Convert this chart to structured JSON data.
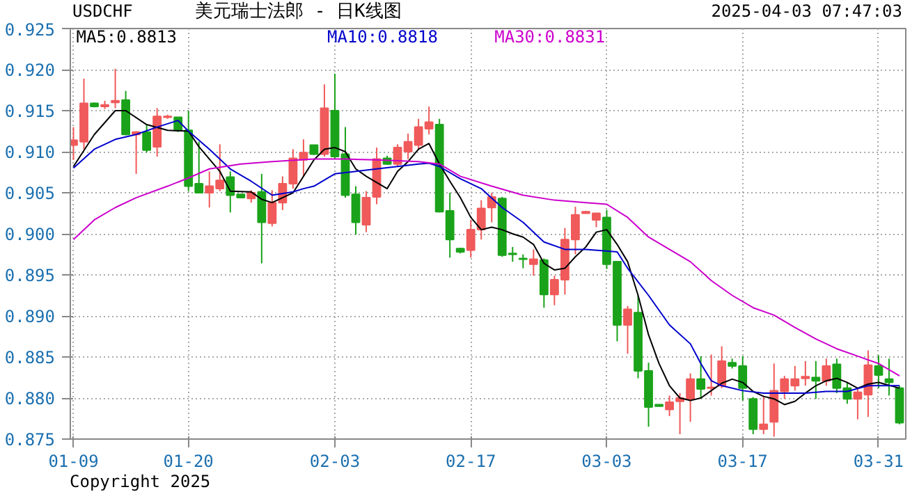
{
  "chart_data": {
    "type": "candlestick",
    "title": "美元瑞士法郎 - 日K线图",
    "annotations": [
      "USDCHF",
      "2025-04-03 07:47:03",
      "Copyright 2025"
    ],
    "categories": [
      "01-09",
      null,
      null,
      null,
      null,
      null,
      null,
      null,
      null,
      null,
      null,
      "01-20",
      null,
      null,
      null,
      null,
      null,
      null,
      null,
      null,
      null,
      null,
      null,
      null,
      null,
      "02-03",
      null,
      null,
      null,
      null,
      null,
      null,
      null,
      null,
      null,
      null,
      null,
      null,
      "02-17",
      null,
      null,
      null,
      null,
      null,
      null,
      null,
      null,
      null,
      null,
      null,
      null,
      "03-03",
      null,
      null,
      null,
      null,
      null,
      null,
      null,
      null,
      null,
      null,
      null,
      null,
      "03-17",
      null,
      null,
      null,
      null,
      null,
      null,
      null,
      null,
      null,
      null,
      null,
      null,
      "03-31",
      null,
      null
    ],
    "ohlc": [
      [
        0.9108,
        0.913,
        0.909,
        0.9114
      ],
      [
        0.9112,
        0.9189,
        0.9103,
        0.9159
      ],
      [
        0.9159,
        0.916,
        0.9154,
        0.9155
      ],
      [
        0.9155,
        0.9162,
        0.9152,
        0.9157
      ],
      [
        0.916,
        0.9201,
        0.9153,
        0.9162
      ],
      [
        0.9163,
        0.9174,
        0.912,
        0.9121
      ],
      [
        0.9121,
        0.9125,
        0.9073,
        0.9124
      ],
      [
        0.9124,
        0.9133,
        0.9099,
        0.9102
      ],
      [
        0.9106,
        0.9153,
        0.9094,
        0.9143
      ],
      [
        0.9142,
        0.9145,
        0.914,
        0.9143
      ],
      [
        0.9142,
        0.9142,
        0.9124,
        0.9126
      ],
      [
        0.9126,
        0.915,
        0.9052,
        0.9058
      ],
      [
        0.9061,
        0.9112,
        0.905,
        0.905
      ],
      [
        0.905,
        0.9076,
        0.9032,
        0.9058
      ],
      [
        0.9055,
        0.9109,
        0.9052,
        0.9065
      ],
      [
        0.9069,
        0.9076,
        0.9026,
        0.9047
      ],
      [
        0.9048,
        0.9048,
        0.9044,
        0.9044
      ],
      [
        0.9043,
        0.9053,
        0.9038,
        0.905
      ],
      [
        0.9051,
        0.9073,
        0.8964,
        0.9014
      ],
      [
        0.9013,
        0.9053,
        0.9009,
        0.9038
      ],
      [
        0.9038,
        0.907,
        0.9029,
        0.9061
      ],
      [
        0.9061,
        0.9103,
        0.9055,
        0.9092
      ],
      [
        0.909,
        0.9115,
        0.907,
        0.9099
      ],
      [
        0.9108,
        0.9108,
        0.9096,
        0.9097
      ],
      [
        0.9097,
        0.9182,
        0.9094,
        0.9153
      ],
      [
        0.915,
        0.9195,
        0.9091,
        0.9094
      ],
      [
        0.9097,
        0.913,
        0.9044,
        0.9047
      ],
      [
        0.9048,
        0.9058,
        0.8999,
        0.9014
      ],
      [
        0.9011,
        0.9052,
        0.9002,
        0.9044
      ],
      [
        0.9045,
        0.9105,
        0.9036,
        0.9091
      ],
      [
        0.9092,
        0.9095,
        0.9084,
        0.9085
      ],
      [
        0.9085,
        0.9109,
        0.9082,
        0.9105
      ],
      [
        0.91,
        0.9122,
        0.9091,
        0.9112
      ],
      [
        0.9108,
        0.914,
        0.9103,
        0.913
      ],
      [
        0.9128,
        0.9155,
        0.9121,
        0.9136
      ],
      [
        0.9133,
        0.914,
        0.9026,
        0.9027
      ],
      [
        0.9028,
        0.905,
        0.8971,
        0.8993
      ],
      [
        0.8982,
        0.8983,
        0.8976,
        0.8978
      ],
      [
        0.898,
        0.9017,
        0.8971,
        0.9005
      ],
      [
        0.9005,
        0.9041,
        0.8993,
        0.9031
      ],
      [
        0.9032,
        0.905,
        0.9014,
        0.9045
      ],
      [
        0.9043,
        0.9045,
        0.8972,
        0.8974
      ],
      [
        0.8976,
        0.8984,
        0.8966,
        0.8975
      ],
      [
        0.897,
        0.8975,
        0.8958,
        0.8969
      ],
      [
        0.8963,
        0.8981,
        0.8949,
        0.8969
      ],
      [
        0.8968,
        0.897,
        0.891,
        0.8926
      ],
      [
        0.8926,
        0.8949,
        0.8913,
        0.8944
      ],
      [
        0.8944,
        0.9007,
        0.8926,
        0.8993
      ],
      [
        0.8993,
        0.9033,
        0.8975,
        0.9023
      ],
      [
        0.9025,
        0.9028,
        0.9025,
        0.9027
      ],
      [
        0.9017,
        0.9025,
        0.9008,
        0.9025
      ],
      [
        0.902,
        0.9029,
        0.8957,
        0.8963
      ],
      [
        0.8966,
        0.8966,
        0.8869,
        0.8889
      ],
      [
        0.8889,
        0.8912,
        0.8854,
        0.8908
      ],
      [
        0.8904,
        0.8925,
        0.8824,
        0.8833
      ],
      [
        0.8833,
        0.8843,
        0.8765,
        0.8789
      ],
      [
        0.8792,
        0.8792,
        0.879,
        0.879
      ],
      [
        0.8786,
        0.8803,
        0.8778,
        0.8795
      ],
      [
        0.8796,
        0.8806,
        0.8756,
        0.88
      ],
      [
        0.8799,
        0.883,
        0.8771,
        0.8823
      ],
      [
        0.8823,
        0.8851,
        0.8799,
        0.8811
      ],
      [
        0.8812,
        0.8853,
        0.8803,
        0.8813
      ],
      [
        0.8815,
        0.8863,
        0.8812,
        0.8845
      ],
      [
        0.8843,
        0.8848,
        0.8836,
        0.8839
      ],
      [
        0.8839,
        0.8851,
        0.8797,
        0.8812
      ],
      [
        0.8799,
        0.8801,
        0.8756,
        0.8762
      ],
      [
        0.8762,
        0.8802,
        0.8756,
        0.8768
      ],
      [
        0.8771,
        0.8842,
        0.8753,
        0.8809
      ],
      [
        0.8808,
        0.8827,
        0.8799,
        0.8823
      ],
      [
        0.8815,
        0.8839,
        0.8809,
        0.8823
      ],
      [
        0.8824,
        0.8845,
        0.8815,
        0.8826
      ],
      [
        0.8825,
        0.8845,
        0.8799,
        0.8821
      ],
      [
        0.8821,
        0.8848,
        0.8815,
        0.8839
      ],
      [
        0.8841,
        0.8848,
        0.8806,
        0.8812
      ],
      [
        0.8812,
        0.8819,
        0.8793,
        0.8799
      ],
      [
        0.8799,
        0.8812,
        0.8774,
        0.8807
      ],
      [
        0.8804,
        0.8858,
        0.8777,
        0.884
      ],
      [
        0.8839,
        0.8852,
        0.8812,
        0.8828
      ],
      [
        0.8823,
        0.8848,
        0.8803,
        0.8819
      ],
      [
        0.8812,
        0.8815,
        0.8768,
        0.877
      ]
    ],
    "colors": [
      "#f05a5a",
      "#f05a5a",
      "#1aa31a",
      "#f05a5a",
      "#f05a5a",
      "#1aa31a",
      "#f05a5a",
      "#1aa31a",
      "#f05a5a",
      "#f05a5a",
      "#1aa31a",
      "#1aa31a",
      "#1aa31a",
      "#f05a5a",
      "#f05a5a",
      "#1aa31a",
      "#1aa31a",
      "#f05a5a",
      "#1aa31a",
      "#f05a5a",
      "#f05a5a",
      "#f05a5a",
      "#f05a5a",
      "#1aa31a",
      "#f05a5a",
      "#1aa31a",
      "#1aa31a",
      "#1aa31a",
      "#f05a5a",
      "#f05a5a",
      "#1aa31a",
      "#f05a5a",
      "#f05a5a",
      "#f05a5a",
      "#f05a5a",
      "#1aa31a",
      "#1aa31a",
      "#1aa31a",
      "#f05a5a",
      "#f05a5a",
      "#f05a5a",
      "#1aa31a",
      "#1aa31a",
      "#1aa31a",
      "#f05a5a",
      "#1aa31a",
      "#f05a5a",
      "#f05a5a",
      "#f05a5a",
      "#f05a5a",
      "#f05a5a",
      "#1aa31a",
      "#1aa31a",
      "#f05a5a",
      "#1aa31a",
      "#1aa31a",
      "#1aa31a",
      "#f05a5a",
      "#f05a5a",
      "#f05a5a",
      "#1aa31a",
      "#f05a5a",
      "#f05a5a",
      "#1aa31a",
      "#1aa31a",
      "#1aa31a",
      "#f05a5a",
      "#f05a5a",
      "#f05a5a",
      "#f05a5a",
      "#f05a5a",
      "#1aa31a",
      "#f05a5a",
      "#1aa31a",
      "#1aa31a",
      "#f05a5a",
      "#f05a5a",
      "#1aa31a",
      "#1aa31a",
      "#1aa31a"
    ],
    "series": [
      {
        "type": "line",
        "name": "MA5:0.8813",
        "color": "#000000",
        "values": [
          0.9082,
          null,
          0.9121,
          null,
          0.915,
          0.915,
          null,
          0.9133,
          null,
          0.9126,
          null,
          0.9125,
          0.9106,
          null,
          0.9076,
          0.9052,
          null,
          0.9051,
          0.9042,
          0.9038,
          null,
          0.905,
          null,
          0.909,
          0.9103,
          0.9105,
          0.91,
          0.9079,
          0.907,
          null,
          0.9055,
          0.9076,
          0.9088,
          0.9103,
          0.911,
          0.9085,
          0.9064,
          0.9044,
          0.902,
          0.9005,
          0.9008,
          0.9005,
          0.9,
          0.8996,
          0.8987,
          0.8964,
          0.8956,
          0.8958,
          0.8972,
          0.8984,
          0.9002,
          0.9005,
          0.8987,
          0.8966,
          0.8925,
          0.8877,
          0.8842,
          0.8815,
          0.88,
          0.8797,
          0.88,
          0.8809,
          0.8818,
          0.8823,
          0.8819,
          0.8808,
          0.8802,
          0.8799,
          0.8792,
          0.8796,
          0.8806,
          0.8815,
          0.8821,
          0.8824,
          0.8819,
          0.8812,
          0.8817,
          0.8819,
          null,
          0.8812
        ]
      },
      {
        "type": "line",
        "name": "MA10:0.8818",
        "color": "#0000cc",
        "values": [
          0.908,
          null,
          0.9103,
          null,
          0.9115,
          null,
          0.9121,
          null,
          0.913,
          null,
          0.9138,
          0.9125,
          null,
          0.9103,
          null,
          0.9079,
          null,
          0.9064,
          null,
          0.9047,
          null,
          0.9051,
          0.9055,
          0.9058,
          null,
          0.9073,
          null,
          0.9076,
          null,
          0.9079,
          null,
          0.9082,
          null,
          0.9085,
          0.9086,
          0.9082,
          null,
          0.9067,
          null,
          0.9055,
          null,
          0.9032,
          null,
          0.9014,
          null,
          0.899,
          null,
          0.8981,
          null,
          0.8981,
          null,
          0.8979,
          0.8978,
          0.8958,
          null,
          0.8925,
          null,
          0.8889,
          null,
          0.8866,
          0.8842,
          0.8821,
          0.8815,
          null,
          0.8809,
          null,
          0.8806,
          null,
          0.8806,
          null,
          0.8806,
          null,
          0.8808,
          null,
          0.8808,
          null,
          0.8815,
          null,
          null,
          0.8815
        ]
      },
      {
        "type": "line",
        "name": "MA30:0.8831",
        "color": "#cc00cc",
        "values": [
          0.8993,
          null,
          0.9017,
          null,
          0.9032,
          null,
          0.9044,
          null,
          null,
          0.9058,
          null,
          0.9068,
          null,
          0.9079,
          null,
          null,
          0.9085,
          null,
          null,
          0.9088,
          null,
          null,
          null,
          0.9091,
          null,
          null,
          0.9091,
          null,
          null,
          0.909,
          null,
          null,
          null,
          0.9088,
          null,
          0.9085,
          null,
          0.907,
          null,
          null,
          0.9058,
          null,
          null,
          0.9047,
          null,
          null,
          0.9041,
          null,
          null,
          0.9038,
          null,
          0.9036,
          null,
          0.902,
          null,
          0.8996,
          null,
          0.8981,
          null,
          0.8966,
          null,
          0.8943,
          null,
          0.8925,
          null,
          0.891,
          null,
          0.8901,
          null,
          0.8886,
          null,
          0.8872,
          null,
          0.886,
          null,
          0.8851,
          null,
          0.8842,
          null,
          0.8827
        ]
      }
    ],
    "ylim": [
      0.875,
      0.925
    ],
    "yticks": [
      {
        "value": 0.875,
        "label": "0.875"
      },
      {
        "value": 0.88,
        "label": "0.880"
      },
      {
        "value": 0.885,
        "label": "0.885"
      },
      {
        "value": 0.89,
        "label": "0.890"
      },
      {
        "value": 0.895,
        "label": "0.895"
      },
      {
        "value": 0.9,
        "label": "0.900"
      },
      {
        "value": 0.905,
        "label": "0.905"
      },
      {
        "value": 0.91,
        "label": "0.910"
      },
      {
        "value": 0.915,
        "label": "0.915"
      },
      {
        "value": 0.92,
        "label": "0.920"
      },
      {
        "value": 0.925,
        "label": "0.925"
      }
    ],
    "grid": true
  }
}
